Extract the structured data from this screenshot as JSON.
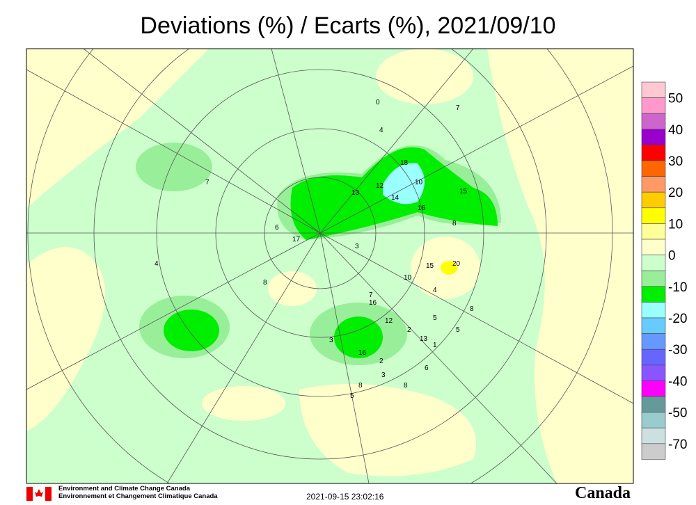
{
  "header": {
    "title": "Deviations (%) / Ecarts (%), 2021/09/10"
  },
  "legend": {
    "colors": [
      "#ffc8d2",
      "#ff99cc",
      "#cc66cc",
      "#9900cc",
      "#ff0000",
      "#ff6600",
      "#ff9966",
      "#ffcc00",
      "#ffff00",
      "#ffff99",
      "#ffffcc",
      "#ccffcc",
      "#99ee99",
      "#00ee00",
      "#99ffff",
      "#66ccff",
      "#6699ff",
      "#6666ff",
      "#8855ff",
      "#ff00ff",
      "#669999",
      "#99cccc",
      "#cce0e0",
      "#cccccc"
    ],
    "labels": [
      "50",
      "40",
      "30",
      "20",
      "10",
      "0",
      "-10",
      "-20",
      "-30",
      "-40",
      "-50",
      "-70"
    ]
  },
  "map": {
    "labels": [
      "0",
      "7",
      "4",
      "7",
      "18",
      "10",
      "12",
      "13",
      "14",
      "16",
      "15",
      "8",
      "6",
      "17",
      "3",
      "4",
      "15",
      "20",
      "10",
      "8",
      "4",
      "7",
      "16",
      "8",
      "5",
      "5",
      "12",
      "2",
      "13",
      "1",
      "3",
      "16",
      "2",
      "6",
      "3",
      "8",
      "8",
      "5"
    ]
  },
  "footer": {
    "org_en": "Environment and Climate Change Canada",
    "org_fr": "Environnement et Changement Climatique Canada",
    "timestamp": "2021-09-15 23:02:16",
    "wordmark": "Canada"
  }
}
